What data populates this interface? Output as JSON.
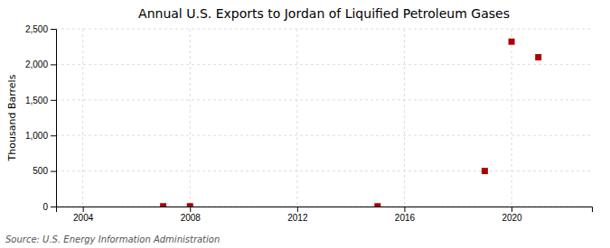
{
  "chart_data": {
    "type": "scatter",
    "title": "Annual U.S. Exports to Jordan of Liquified Petroleum Gases",
    "y_label": "Thousand Barrels",
    "source": "Source: U.S. Energy Information Administration",
    "x": [
      2007,
      2008,
      2015,
      2019,
      2020,
      2021
    ],
    "values": [
      3,
      3,
      3,
      500,
      2320,
      2100
    ],
    "color": "#aa0000",
    "marker": "square",
    "xlim": [
      2003,
      2023
    ],
    "xticks": [
      2004,
      2008,
      2012,
      2016,
      2020
    ],
    "ylim": [
      0,
      2500
    ],
    "yticks": [
      0,
      500,
      {
        "value": 1000,
        "label": "1,000"
      },
      {
        "value": 1500,
        "label": "1,500"
      },
      {
        "value": 2000,
        "label": "2,000"
      },
      {
        "value": 2500,
        "label": "2,500"
      }
    ],
    "grid": true
  }
}
